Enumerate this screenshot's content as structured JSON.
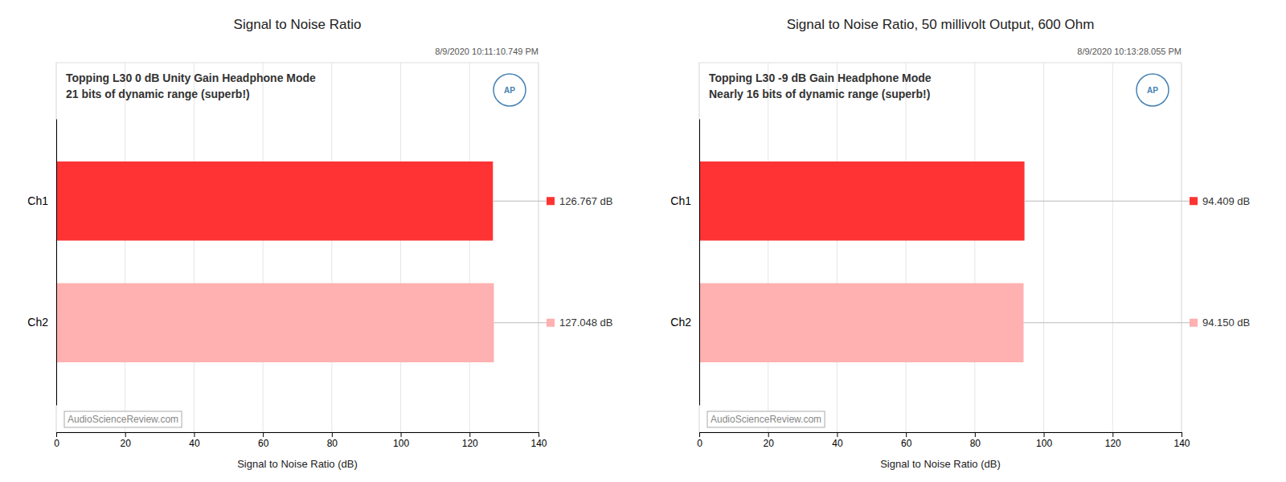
{
  "chart_data": [
    {
      "type": "bar",
      "orientation": "horizontal",
      "title": "Signal to Noise Ratio",
      "annotations": [
        "8/9/2020 10:11:10.749 PM",
        "Topping L30 0 dB Unity Gain Headphone Mode",
        "21 bits of dynamic range (superb!)",
        "AudioScienceReview.com",
        "AP"
      ],
      "categories": [
        "Ch1",
        "Ch2"
      ],
      "values": [
        126.767,
        127.048
      ],
      "value_labels": [
        "126.767 dB",
        "127.048 dB"
      ],
      "data_labels": true,
      "colors": [
        "#FF3333",
        "#FFB0B0"
      ],
      "xlabel": "Signal to Noise Ratio (dB)",
      "xlim": [
        0,
        140
      ],
      "xticks": [
        0,
        20,
        40,
        60,
        80,
        100,
        120,
        140
      ],
      "grid": true
    },
    {
      "type": "bar",
      "orientation": "horizontal",
      "title": "Signal to Noise Ratio, 50 millivolt Output, 600 Ohm",
      "annotations": [
        "8/9/2020 10:13:28.055 PM",
        "Topping L30 -9 dB Gain Headphone Mode",
        "Nearly 16 bits of dynamic range (superb!)",
        "AudioScienceReview.com",
        "AP"
      ],
      "categories": [
        "Ch1",
        "Ch2"
      ],
      "values": [
        94.409,
        94.15
      ],
      "value_labels": [
        "94.409 dB",
        "94.150 dB"
      ],
      "data_labels": true,
      "colors": [
        "#FF3333",
        "#FFB0B0"
      ],
      "xlabel": "Signal to Noise Ratio (dB)",
      "xlim": [
        0,
        140
      ],
      "xticks": [
        0,
        20,
        40,
        60,
        80,
        100,
        120,
        140
      ],
      "grid": true
    }
  ]
}
